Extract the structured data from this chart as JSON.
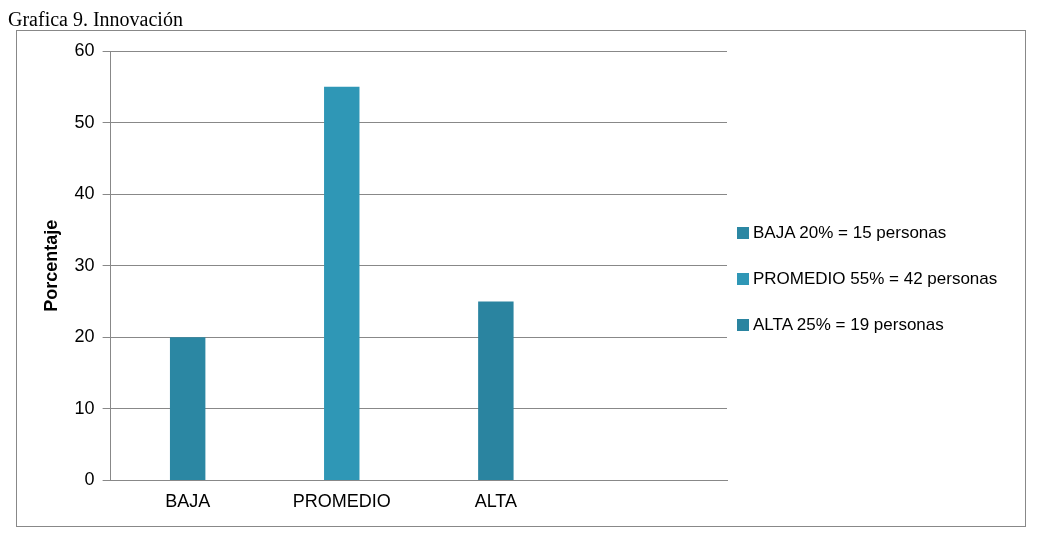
{
  "chart_data": {
    "type": "bar",
    "title": "Grafica 9. Innovación",
    "ylabel": "Porcentaje",
    "categories": [
      "BAJA",
      "PROMEDIO",
      "ALTA",
      null
    ],
    "series": [
      {
        "name": "BAJA 20% = 15 personas",
        "color": "#2b87a3",
        "values": [
          20,
          null,
          null,
          null
        ]
      },
      {
        "name": "PROMEDIO 55% = 42 personas",
        "color": "#2f97b6",
        "values": [
          null,
          55,
          null,
          null
        ]
      },
      {
        "name": "ALTA 25% = 19 personas",
        "color": "#2a84a0",
        "values": [
          null,
          null,
          25,
          null
        ]
      }
    ],
    "ylim": [
      0,
      60
    ],
    "yticks": [
      0,
      10,
      20,
      30,
      40,
      50,
      60
    ],
    "grid": "y",
    "legend": "right"
  }
}
